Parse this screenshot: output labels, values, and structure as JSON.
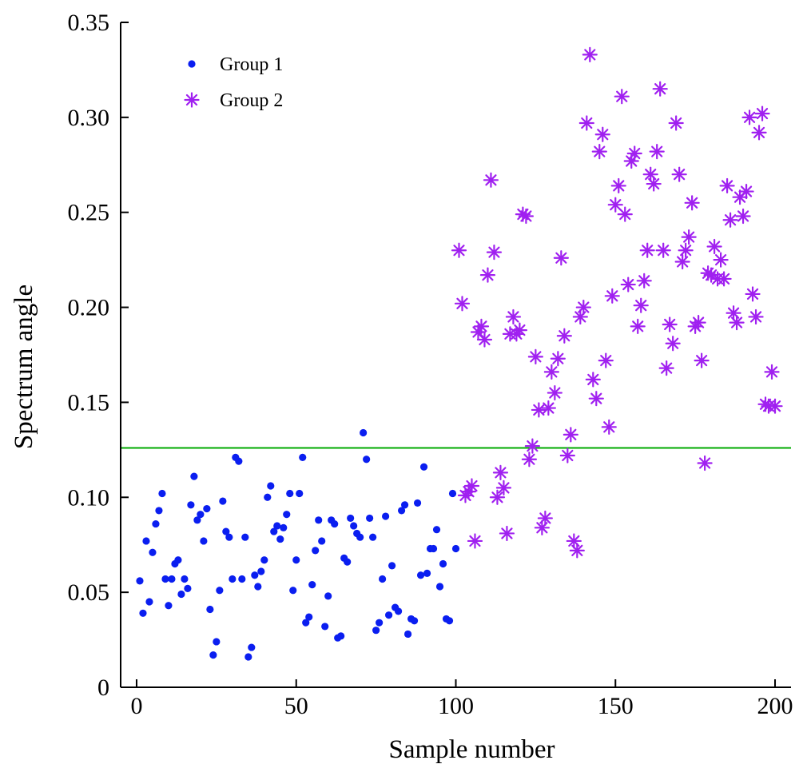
{
  "chart_data": {
    "type": "scatter",
    "title": "",
    "xlabel": "Sample number",
    "ylabel": "Spectrum angle",
    "xlim": [
      -5,
      205
    ],
    "ylim": [
      0,
      0.35
    ],
    "xticks": [
      0,
      50,
      100,
      150,
      200
    ],
    "xtick_labels": [
      "0",
      "50",
      "100",
      "150",
      "200"
    ],
    "yticks": [
      0,
      0.05,
      0.1,
      0.15,
      0.2,
      0.25,
      0.3,
      0.35
    ],
    "ytick_labels": [
      "0",
      "0.05",
      "0.10",
      "0.15",
      "0.20",
      "0.25",
      "0.30",
      "0.35"
    ],
    "grid": false,
    "legend_position": "top-left",
    "threshold": {
      "y": 0.126,
      "color": "#00aa00"
    },
    "series": [
      {
        "name": "Group 1",
        "marker": "dot",
        "color": "#0a1ef0",
        "points": [
          [
            1,
            0.056
          ],
          [
            2,
            0.039
          ],
          [
            3,
            0.077
          ],
          [
            4,
            0.045
          ],
          [
            5,
            0.071
          ],
          [
            6,
            0.086
          ],
          [
            7,
            0.093
          ],
          [
            8,
            0.102
          ],
          [
            9,
            0.057
          ],
          [
            10,
            0.043
          ],
          [
            11,
            0.057
          ],
          [
            12,
            0.065
          ],
          [
            13,
            0.067
          ],
          [
            14,
            0.049
          ],
          [
            15,
            0.057
          ],
          [
            16,
            0.052
          ],
          [
            17,
            0.096
          ],
          [
            18,
            0.111
          ],
          [
            19,
            0.088
          ],
          [
            20,
            0.091
          ],
          [
            21,
            0.077
          ],
          [
            22,
            0.094
          ],
          [
            23,
            0.041
          ],
          [
            24,
            0.017
          ],
          [
            25,
            0.024
          ],
          [
            26,
            0.051
          ],
          [
            27,
            0.098
          ],
          [
            28,
            0.082
          ],
          [
            29,
            0.079
          ],
          [
            30,
            0.057
          ],
          [
            31,
            0.121
          ],
          [
            32,
            0.119
          ],
          [
            33,
            0.057
          ],
          [
            34,
            0.079
          ],
          [
            35,
            0.016
          ],
          [
            36,
            0.021
          ],
          [
            37,
            0.059
          ],
          [
            38,
            0.053
          ],
          [
            39,
            0.061
          ],
          [
            40,
            0.067
          ],
          [
            41,
            0.1
          ],
          [
            42,
            0.106
          ],
          [
            43,
            0.082
          ],
          [
            44,
            0.085
          ],
          [
            45,
            0.078
          ],
          [
            46,
            0.084
          ],
          [
            47,
            0.091
          ],
          [
            48,
            0.102
          ],
          [
            49,
            0.051
          ],
          [
            50,
            0.067
          ],
          [
            51,
            0.102
          ],
          [
            52,
            0.121
          ],
          [
            53,
            0.034
          ],
          [
            54,
            0.037
          ],
          [
            55,
            0.054
          ],
          [
            56,
            0.072
          ],
          [
            57,
            0.088
          ],
          [
            58,
            0.077
          ],
          [
            59,
            0.032
          ],
          [
            60,
            0.048
          ],
          [
            61,
            0.088
          ],
          [
            62,
            0.086
          ],
          [
            63,
            0.026
          ],
          [
            64,
            0.027
          ],
          [
            65,
            0.068
          ],
          [
            66,
            0.066
          ],
          [
            67,
            0.089
          ],
          [
            68,
            0.085
          ],
          [
            69,
            0.081
          ],
          [
            70,
            0.079
          ],
          [
            71,
            0.134
          ],
          [
            72,
            0.12
          ],
          [
            73,
            0.089
          ],
          [
            74,
            0.079
          ],
          [
            75,
            0.03
          ],
          [
            76,
            0.034
          ],
          [
            77,
            0.057
          ],
          [
            78,
            0.09
          ],
          [
            79,
            0.038
          ],
          [
            80,
            0.064
          ],
          [
            81,
            0.042
          ],
          [
            82,
            0.04
          ],
          [
            83,
            0.093
          ],
          [
            84,
            0.096
          ],
          [
            85,
            0.028
          ],
          [
            86,
            0.036
          ],
          [
            87,
            0.035
          ],
          [
            88,
            0.097
          ],
          [
            89,
            0.059
          ],
          [
            90,
            0.116
          ],
          [
            91,
            0.06
          ],
          [
            92,
            0.073
          ],
          [
            93,
            0.073
          ],
          [
            94,
            0.083
          ],
          [
            95,
            0.053
          ],
          [
            96,
            0.065
          ],
          [
            97,
            0.036
          ],
          [
            98,
            0.035
          ],
          [
            99,
            0.102
          ],
          [
            100,
            0.073
          ]
        ]
      },
      {
        "name": "Group 2",
        "marker": "asterisk",
        "color": "#a020f0",
        "points": [
          [
            101,
            0.23
          ],
          [
            102,
            0.202
          ],
          [
            103,
            0.101
          ],
          [
            104,
            0.103
          ],
          [
            105,
            0.106
          ],
          [
            106,
            0.077
          ],
          [
            107,
            0.187
          ],
          [
            108,
            0.19
          ],
          [
            109,
            0.183
          ],
          [
            110,
            0.217
          ],
          [
            111,
            0.267
          ],
          [
            112,
            0.229
          ],
          [
            113,
            0.1
          ],
          [
            114,
            0.113
          ],
          [
            115,
            0.105
          ],
          [
            116,
            0.081
          ],
          [
            117,
            0.186
          ],
          [
            118,
            0.195
          ],
          [
            119,
            0.186
          ],
          [
            120,
            0.188
          ],
          [
            121,
            0.249
          ],
          [
            122,
            0.248
          ],
          [
            123,
            0.12
          ],
          [
            124,
            0.127
          ],
          [
            125,
            0.174
          ],
          [
            126,
            0.146
          ],
          [
            127,
            0.084
          ],
          [
            128,
            0.089
          ],
          [
            129,
            0.147
          ],
          [
            130,
            0.166
          ],
          [
            131,
            0.155
          ],
          [
            132,
            0.173
          ],
          [
            133,
            0.226
          ],
          [
            134,
            0.185
          ],
          [
            135,
            0.122
          ],
          [
            136,
            0.133
          ],
          [
            137,
            0.077
          ],
          [
            138,
            0.072
          ],
          [
            139,
            0.195
          ],
          [
            140,
            0.2
          ],
          [
            141,
            0.297
          ],
          [
            142,
            0.333
          ],
          [
            143,
            0.162
          ],
          [
            144,
            0.152
          ],
          [
            145,
            0.282
          ],
          [
            146,
            0.291
          ],
          [
            147,
            0.172
          ],
          [
            148,
            0.137
          ],
          [
            149,
            0.206
          ],
          [
            150,
            0.254
          ],
          [
            151,
            0.264
          ],
          [
            152,
            0.311
          ],
          [
            153,
            0.249
          ],
          [
            154,
            0.212
          ],
          [
            155,
            0.277
          ],
          [
            156,
            0.281
          ],
          [
            157,
            0.19
          ],
          [
            158,
            0.201
          ],
          [
            159,
            0.214
          ],
          [
            160,
            0.23
          ],
          [
            161,
            0.27
          ],
          [
            162,
            0.265
          ],
          [
            163,
            0.282
          ],
          [
            164,
            0.315
          ],
          [
            165,
            0.23
          ],
          [
            166,
            0.168
          ],
          [
            167,
            0.191
          ],
          [
            168,
            0.181
          ],
          [
            169,
            0.297
          ],
          [
            170,
            0.27
          ],
          [
            171,
            0.224
          ],
          [
            172,
            0.23
          ],
          [
            173,
            0.237
          ],
          [
            174,
            0.255
          ],
          [
            175,
            0.19
          ],
          [
            176,
            0.192
          ],
          [
            177,
            0.172
          ],
          [
            178,
            0.118
          ],
          [
            179,
            0.218
          ],
          [
            180,
            0.217
          ],
          [
            181,
            0.232
          ],
          [
            182,
            0.215
          ],
          [
            183,
            0.225
          ],
          [
            184,
            0.215
          ],
          [
            185,
            0.264
          ],
          [
            186,
            0.246
          ],
          [
            187,
            0.197
          ],
          [
            188,
            0.192
          ],
          [
            189,
            0.258
          ],
          [
            190,
            0.248
          ],
          [
            191,
            0.261
          ],
          [
            192,
            0.3
          ],
          [
            193,
            0.207
          ],
          [
            194,
            0.195
          ],
          [
            195,
            0.292
          ],
          [
            196,
            0.302
          ],
          [
            197,
            0.149
          ],
          [
            198,
            0.148
          ],
          [
            199,
            0.166
          ],
          [
            200,
            0.148
          ]
        ]
      }
    ]
  }
}
